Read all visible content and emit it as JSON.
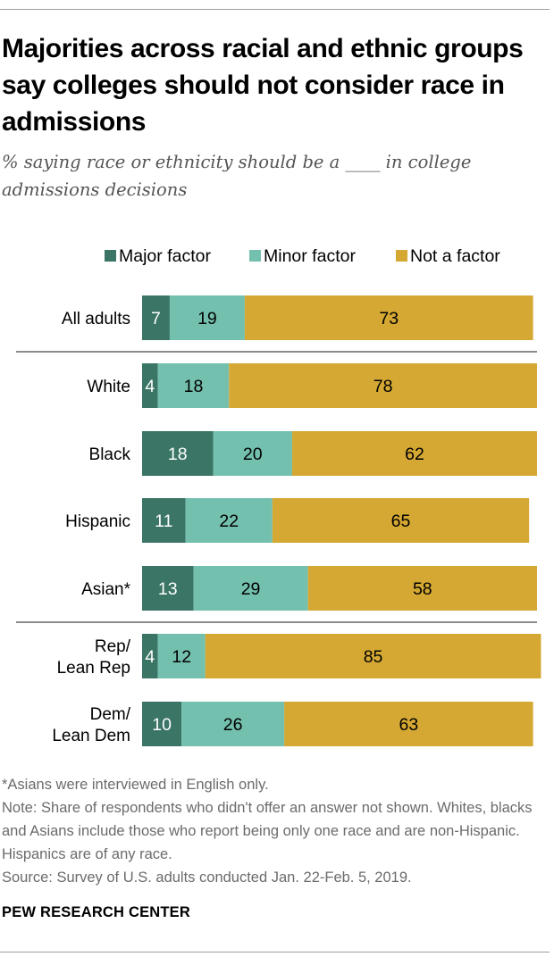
{
  "header": {
    "title": "Majorities across racial and ethnic groups say colleges should not consider race in admissions",
    "subtitle": "% saying race or ethnicity should be a ____ in college admissions decisions"
  },
  "chart_data": {
    "type": "bar",
    "orientation": "horizontal",
    "stacked": true,
    "categories": [
      "All adults",
      "White",
      "Black",
      "Hispanic",
      "Asian*",
      "Rep/\nLean Rep",
      "Dem/\nLean Dem"
    ],
    "series": [
      {
        "name": "Major factor",
        "color": "#3a7566",
        "values": [
          7,
          4,
          18,
          11,
          13,
          4,
          10
        ]
      },
      {
        "name": "Minor factor",
        "color": "#74c0ae",
        "values": [
          19,
          18,
          20,
          22,
          29,
          12,
          26
        ]
      },
      {
        "name": "Not a factor",
        "color": "#d4a833",
        "values": [
          73,
          78,
          62,
          65,
          58,
          85,
          63
        ]
      }
    ],
    "xlim": [
      0,
      100
    ],
    "legend_position": "top",
    "grid": false,
    "group_dividers_after": [
      0,
      4
    ]
  },
  "notes": {
    "asian_note": "*Asians were interviewed in English only.",
    "note": "Note: Share of respondents who didn't offer an answer not shown. Whites, blacks and Asians include those who report being only one race and are non-Hispanic. Hispanics are of any race.",
    "source": "Source: Survey of U.S. adults conducted Jan. 22-Feb. 5, 2019."
  },
  "branding": {
    "name": "PEW RESEARCH CENTER"
  }
}
